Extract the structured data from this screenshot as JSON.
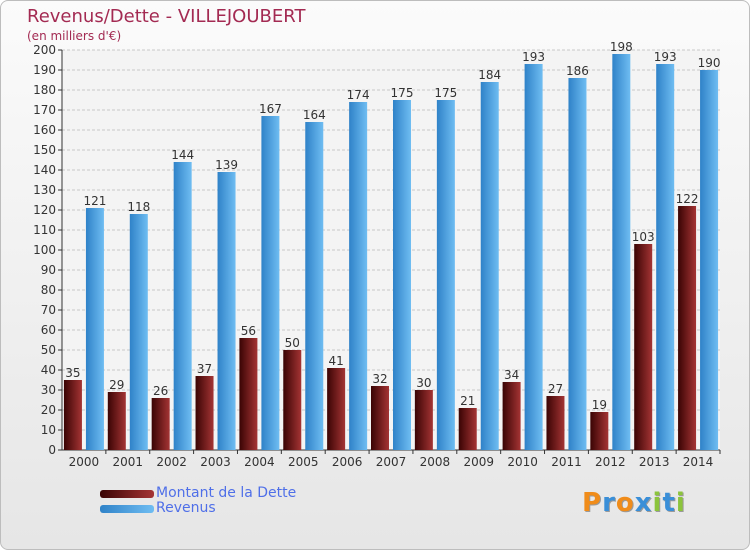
{
  "header": {
    "title": "Revenus/Dette - VILLEJOUBERT",
    "subtitle": "(en milliers d'€)"
  },
  "legend": {
    "debt_label": "Montant de la Dette",
    "revenue_label": "Revenus"
  },
  "logo": {
    "letters": [
      "P",
      "r",
      "o",
      "x",
      "i",
      "t",
      "i"
    ]
  },
  "colors": {
    "debt": "#7a1f1f",
    "revenue": "#4aa3e6",
    "title": "#a32a52",
    "legend_text": "#4f6fe8",
    "logo": [
      "#f08c1a",
      "#3a8fd8",
      "#f08c1a",
      "#3a8fd8",
      "#8cc43c",
      "#3a8fd8",
      "#8cc43c"
    ]
  },
  "chart_data": {
    "type": "bar",
    "title": "Revenus/Dette - VILLEJOUBERT",
    "ylabel": "(en milliers d'€)",
    "xlabel": "",
    "ylim": [
      0,
      200
    ],
    "ytick_step": 10,
    "grid": true,
    "legend_position": "bottom-left",
    "categories": [
      "2000",
      "2001",
      "2002",
      "2003",
      "2004",
      "2005",
      "2006",
      "2007",
      "2008",
      "2009",
      "2010",
      "2011",
      "2012",
      "2013",
      "2014"
    ],
    "series": [
      {
        "name": "Montant de la Dette",
        "values": [
          35,
          29,
          26,
          37,
          56,
          50,
          41,
          32,
          30,
          21,
          34,
          27,
          19,
          103,
          122
        ]
      },
      {
        "name": "Revenus",
        "values": [
          121,
          118,
          144,
          139,
          167,
          164,
          174,
          175,
          175,
          184,
          193,
          186,
          198,
          193,
          190
        ]
      }
    ]
  }
}
